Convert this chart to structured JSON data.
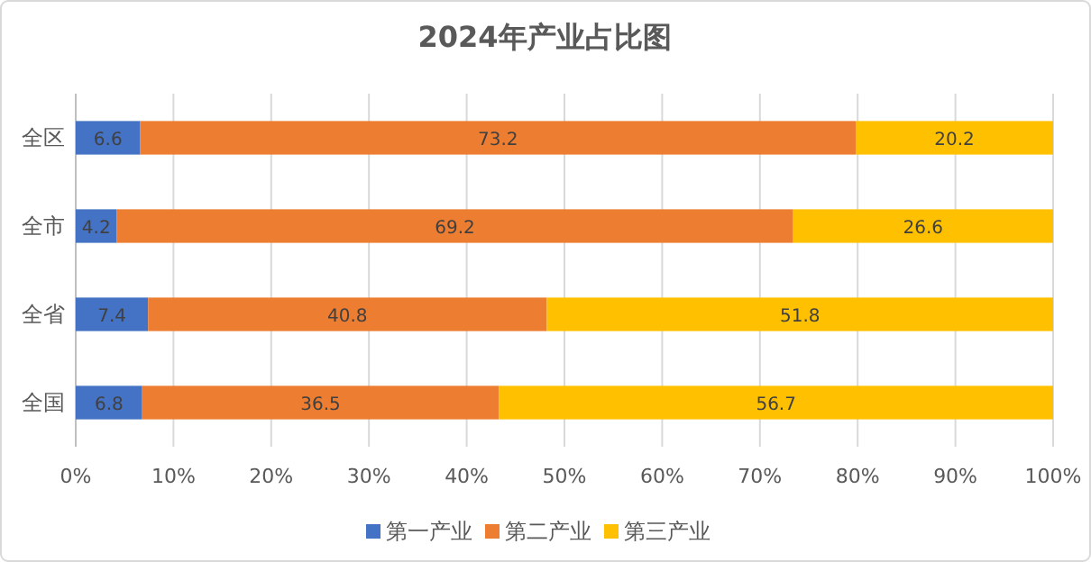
{
  "chart_data": {
    "type": "bar",
    "orientation": "horizontal",
    "stacked": true,
    "title": "2024年产业占比图",
    "categories": [
      "全区",
      "全市",
      "全省",
      "全国"
    ],
    "series": [
      {
        "name": "第一产业",
        "color": "#4472c4",
        "values": [
          6.6,
          4.2,
          7.4,
          6.8
        ]
      },
      {
        "name": "第二产业",
        "color": "#ed7d31",
        "values": [
          73.2,
          69.2,
          40.8,
          36.5
        ]
      },
      {
        "name": "第三产业",
        "color": "#ffc000",
        "values": [
          20.2,
          26.6,
          51.8,
          56.7
        ]
      }
    ],
    "xlim": [
      0,
      100
    ],
    "xticks": [
      {
        "value": 0,
        "label": "0%"
      },
      {
        "value": 10,
        "label": "10%"
      },
      {
        "value": 20,
        "label": "20%"
      },
      {
        "value": 30,
        "label": "30%"
      },
      {
        "value": 40,
        "label": "40%"
      },
      {
        "value": 50,
        "label": "50%"
      },
      {
        "value": 60,
        "label": "60%"
      },
      {
        "value": 70,
        "label": "70%"
      },
      {
        "value": 80,
        "label": "80%"
      },
      {
        "value": 90,
        "label": "90%"
      },
      {
        "value": 100,
        "label": "100%"
      }
    ],
    "grid": "x",
    "legend": "bottom",
    "data_labels": true
  }
}
